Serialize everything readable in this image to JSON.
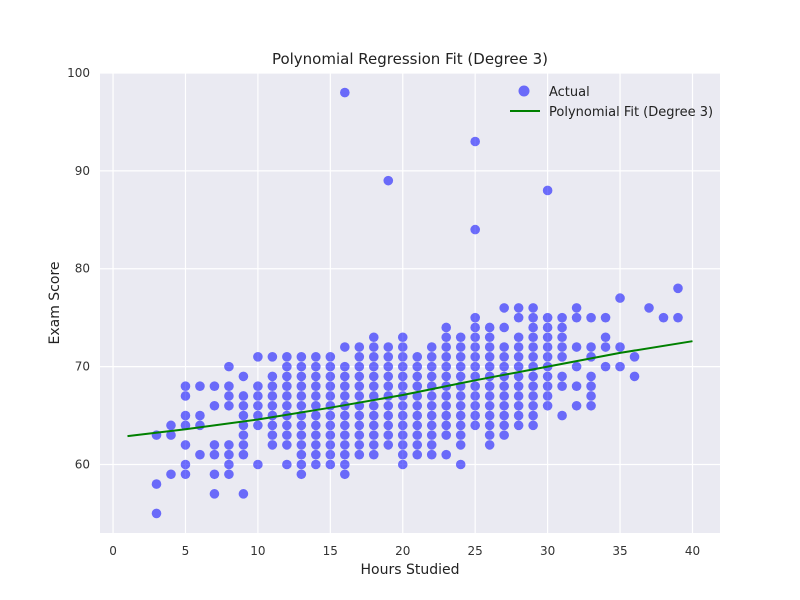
{
  "chart_data": {
    "type": "scatter",
    "title": "Polynomial Regression Fit (Degree 3)",
    "xlabel": "Hours Studied",
    "ylabel": "Exam Score",
    "xlim": [
      -0.9,
      41.9
    ],
    "ylim": [
      53.0,
      100.0
    ],
    "xticks": [
      0,
      5,
      10,
      15,
      20,
      25,
      30,
      35,
      40
    ],
    "yticks": [
      60,
      70,
      80,
      90,
      100
    ],
    "grid": true,
    "legend_position": "top-right",
    "series": [
      {
        "name": "Actual",
        "kind": "scatter",
        "color": "#0000ff",
        "opacity": 0.55,
        "points": [
          [
            3,
            55
          ],
          [
            3,
            58
          ],
          [
            3,
            63
          ],
          [
            4,
            59
          ],
          [
            4,
            63
          ],
          [
            4,
            64
          ],
          [
            5,
            59
          ],
          [
            5,
            60
          ],
          [
            5,
            62
          ],
          [
            5,
            64
          ],
          [
            5,
            65
          ],
          [
            5,
            67
          ],
          [
            5,
            68
          ],
          [
            6,
            61
          ],
          [
            6,
            64
          ],
          [
            6,
            65
          ],
          [
            6,
            68
          ],
          [
            7,
            57
          ],
          [
            7,
            59
          ],
          [
            7,
            61
          ],
          [
            7,
            62
          ],
          [
            7,
            66
          ],
          [
            7,
            68
          ],
          [
            8,
            59
          ],
          [
            8,
            60
          ],
          [
            8,
            61
          ],
          [
            8,
            62
          ],
          [
            8,
            66
          ],
          [
            8,
            67
          ],
          [
            8,
            68
          ],
          [
            8,
            70
          ],
          [
            9,
            57
          ],
          [
            9,
            61
          ],
          [
            9,
            62
          ],
          [
            9,
            63
          ],
          [
            9,
            64
          ],
          [
            9,
            65
          ],
          [
            9,
            66
          ],
          [
            9,
            67
          ],
          [
            9,
            69
          ],
          [
            10,
            60
          ],
          [
            10,
            64
          ],
          [
            10,
            65
          ],
          [
            10,
            66
          ],
          [
            10,
            67
          ],
          [
            10,
            68
          ],
          [
            10,
            71
          ],
          [
            11,
            62
          ],
          [
            11,
            63
          ],
          [
            11,
            64
          ],
          [
            11,
            65
          ],
          [
            11,
            66
          ],
          [
            11,
            67
          ],
          [
            11,
            68
          ],
          [
            11,
            69
          ],
          [
            11,
            71
          ],
          [
            12,
            60
          ],
          [
            12,
            62
          ],
          [
            12,
            63
          ],
          [
            12,
            64
          ],
          [
            12,
            65
          ],
          [
            12,
            66
          ],
          [
            12,
            67
          ],
          [
            12,
            68
          ],
          [
            12,
            69
          ],
          [
            12,
            70
          ],
          [
            12,
            71
          ],
          [
            13,
            59
          ],
          [
            13,
            60
          ],
          [
            13,
            61
          ],
          [
            13,
            62
          ],
          [
            13,
            63
          ],
          [
            13,
            64
          ],
          [
            13,
            65
          ],
          [
            13,
            66
          ],
          [
            13,
            67
          ],
          [
            13,
            68
          ],
          [
            13,
            69
          ],
          [
            13,
            70
          ],
          [
            13,
            71
          ],
          [
            14,
            60
          ],
          [
            14,
            61
          ],
          [
            14,
            62
          ],
          [
            14,
            63
          ],
          [
            14,
            64
          ],
          [
            14,
            65
          ],
          [
            14,
            66
          ],
          [
            14,
            67
          ],
          [
            14,
            68
          ],
          [
            14,
            69
          ],
          [
            14,
            70
          ],
          [
            14,
            71
          ],
          [
            15,
            60
          ],
          [
            15,
            61
          ],
          [
            15,
            62
          ],
          [
            15,
            63
          ],
          [
            15,
            64
          ],
          [
            15,
            65
          ],
          [
            15,
            66
          ],
          [
            15,
            67
          ],
          [
            15,
            68
          ],
          [
            15,
            69
          ],
          [
            15,
            70
          ],
          [
            15,
            71
          ],
          [
            16,
            59
          ],
          [
            16,
            60
          ],
          [
            16,
            61
          ],
          [
            16,
            62
          ],
          [
            16,
            63
          ],
          [
            16,
            64
          ],
          [
            16,
            65
          ],
          [
            16,
            66
          ],
          [
            16,
            67
          ],
          [
            16,
            68
          ],
          [
            16,
            69
          ],
          [
            16,
            70
          ],
          [
            16,
            72
          ],
          [
            16,
            98
          ],
          [
            17,
            61
          ],
          [
            17,
            62
          ],
          [
            17,
            63
          ],
          [
            17,
            64
          ],
          [
            17,
            65
          ],
          [
            17,
            66
          ],
          [
            17,
            67
          ],
          [
            17,
            68
          ],
          [
            17,
            69
          ],
          [
            17,
            70
          ],
          [
            17,
            71
          ],
          [
            17,
            72
          ],
          [
            18,
            61
          ],
          [
            18,
            62
          ],
          [
            18,
            63
          ],
          [
            18,
            64
          ],
          [
            18,
            65
          ],
          [
            18,
            66
          ],
          [
            18,
            67
          ],
          [
            18,
            68
          ],
          [
            18,
            69
          ],
          [
            18,
            70
          ],
          [
            18,
            71
          ],
          [
            18,
            72
          ],
          [
            18,
            73
          ],
          [
            19,
            62
          ],
          [
            19,
            63
          ],
          [
            19,
            64
          ],
          [
            19,
            65
          ],
          [
            19,
            66
          ],
          [
            19,
            67
          ],
          [
            19,
            68
          ],
          [
            19,
            69
          ],
          [
            19,
            70
          ],
          [
            19,
            71
          ],
          [
            19,
            72
          ],
          [
            19,
            89
          ],
          [
            20,
            60
          ],
          [
            20,
            61
          ],
          [
            20,
            62
          ],
          [
            20,
            63
          ],
          [
            20,
            64
          ],
          [
            20,
            65
          ],
          [
            20,
            66
          ],
          [
            20,
            67
          ],
          [
            20,
            68
          ],
          [
            20,
            69
          ],
          [
            20,
            70
          ],
          [
            20,
            71
          ],
          [
            20,
            72
          ],
          [
            20,
            73
          ],
          [
            21,
            61
          ],
          [
            21,
            62
          ],
          [
            21,
            63
          ],
          [
            21,
            64
          ],
          [
            21,
            65
          ],
          [
            21,
            66
          ],
          [
            21,
            67
          ],
          [
            21,
            68
          ],
          [
            21,
            69
          ],
          [
            21,
            70
          ],
          [
            21,
            71
          ],
          [
            22,
            61
          ],
          [
            22,
            62
          ],
          [
            22,
            63
          ],
          [
            22,
            64
          ],
          [
            22,
            65
          ],
          [
            22,
            66
          ],
          [
            22,
            67
          ],
          [
            22,
            68
          ],
          [
            22,
            69
          ],
          [
            22,
            70
          ],
          [
            22,
            71
          ],
          [
            22,
            72
          ],
          [
            23,
            61
          ],
          [
            23,
            63
          ],
          [
            23,
            64
          ],
          [
            23,
            65
          ],
          [
            23,
            66
          ],
          [
            23,
            67
          ],
          [
            23,
            68
          ],
          [
            23,
            69
          ],
          [
            23,
            70
          ],
          [
            23,
            71
          ],
          [
            23,
            72
          ],
          [
            23,
            73
          ],
          [
            23,
            74
          ],
          [
            24,
            60
          ],
          [
            24,
            62
          ],
          [
            24,
            63
          ],
          [
            24,
            64
          ],
          [
            24,
            65
          ],
          [
            24,
            66
          ],
          [
            24,
            67
          ],
          [
            24,
            68
          ],
          [
            24,
            69
          ],
          [
            24,
            70
          ],
          [
            24,
            71
          ],
          [
            24,
            72
          ],
          [
            24,
            73
          ],
          [
            25,
            64
          ],
          [
            25,
            65
          ],
          [
            25,
            66
          ],
          [
            25,
            67
          ],
          [
            25,
            68
          ],
          [
            25,
            69
          ],
          [
            25,
            70
          ],
          [
            25,
            71
          ],
          [
            25,
            72
          ],
          [
            25,
            73
          ],
          [
            25,
            74
          ],
          [
            25,
            75
          ],
          [
            25,
            84
          ],
          [
            25,
            93
          ],
          [
            26,
            62
          ],
          [
            26,
            63
          ],
          [
            26,
            64
          ],
          [
            26,
            65
          ],
          [
            26,
            66
          ],
          [
            26,
            67
          ],
          [
            26,
            68
          ],
          [
            26,
            69
          ],
          [
            26,
            70
          ],
          [
            26,
            71
          ],
          [
            26,
            72
          ],
          [
            26,
            73
          ],
          [
            26,
            74
          ],
          [
            27,
            63
          ],
          [
            27,
            64
          ],
          [
            27,
            65
          ],
          [
            27,
            66
          ],
          [
            27,
            67
          ],
          [
            27,
            68
          ],
          [
            27,
            69
          ],
          [
            27,
            70
          ],
          [
            27,
            71
          ],
          [
            27,
            72
          ],
          [
            27,
            74
          ],
          [
            27,
            76
          ],
          [
            28,
            64
          ],
          [
            28,
            65
          ],
          [
            28,
            66
          ],
          [
            28,
            67
          ],
          [
            28,
            68
          ],
          [
            28,
            69
          ],
          [
            28,
            70
          ],
          [
            28,
            71
          ],
          [
            28,
            72
          ],
          [
            28,
            73
          ],
          [
            28,
            75
          ],
          [
            28,
            76
          ],
          [
            29,
            64
          ],
          [
            29,
            65
          ],
          [
            29,
            66
          ],
          [
            29,
            67
          ],
          [
            29,
            68
          ],
          [
            29,
            69
          ],
          [
            29,
            70
          ],
          [
            29,
            71
          ],
          [
            29,
            72
          ],
          [
            29,
            73
          ],
          [
            29,
            74
          ],
          [
            29,
            75
          ],
          [
            29,
            76
          ],
          [
            30,
            66
          ],
          [
            30,
            67
          ],
          [
            30,
            68
          ],
          [
            30,
            69
          ],
          [
            30,
            70
          ],
          [
            30,
            71
          ],
          [
            30,
            72
          ],
          [
            30,
            73
          ],
          [
            30,
            74
          ],
          [
            30,
            75
          ],
          [
            30,
            88
          ],
          [
            31,
            65
          ],
          [
            31,
            68
          ],
          [
            31,
            69
          ],
          [
            31,
            71
          ],
          [
            31,
            72
          ],
          [
            31,
            73
          ],
          [
            31,
            74
          ],
          [
            31,
            75
          ],
          [
            32,
            66
          ],
          [
            32,
            68
          ],
          [
            32,
            70
          ],
          [
            32,
            72
          ],
          [
            32,
            75
          ],
          [
            32,
            76
          ],
          [
            33,
            66
          ],
          [
            33,
            67
          ],
          [
            33,
            68
          ],
          [
            33,
            69
          ],
          [
            33,
            71
          ],
          [
            33,
            72
          ],
          [
            33,
            75
          ],
          [
            34,
            70
          ],
          [
            34,
            72
          ],
          [
            34,
            73
          ],
          [
            34,
            75
          ],
          [
            35,
            70
          ],
          [
            35,
            72
          ],
          [
            35,
            77
          ],
          [
            36,
            69
          ],
          [
            36,
            71
          ],
          [
            37,
            76
          ],
          [
            38,
            75
          ],
          [
            39,
            75
          ],
          [
            39,
            78
          ]
        ]
      },
      {
        "name": "Polynomial Fit (Degree 3)",
        "kind": "line",
        "color": "#008000",
        "points": [
          [
            1,
            62.9
          ],
          [
            5,
            63.6
          ],
          [
            10,
            64.6
          ],
          [
            15,
            65.8
          ],
          [
            20,
            67.1
          ],
          [
            25,
            68.6
          ],
          [
            30,
            70.0
          ],
          [
            35,
            71.4
          ],
          [
            40,
            72.6
          ]
        ]
      }
    ]
  }
}
